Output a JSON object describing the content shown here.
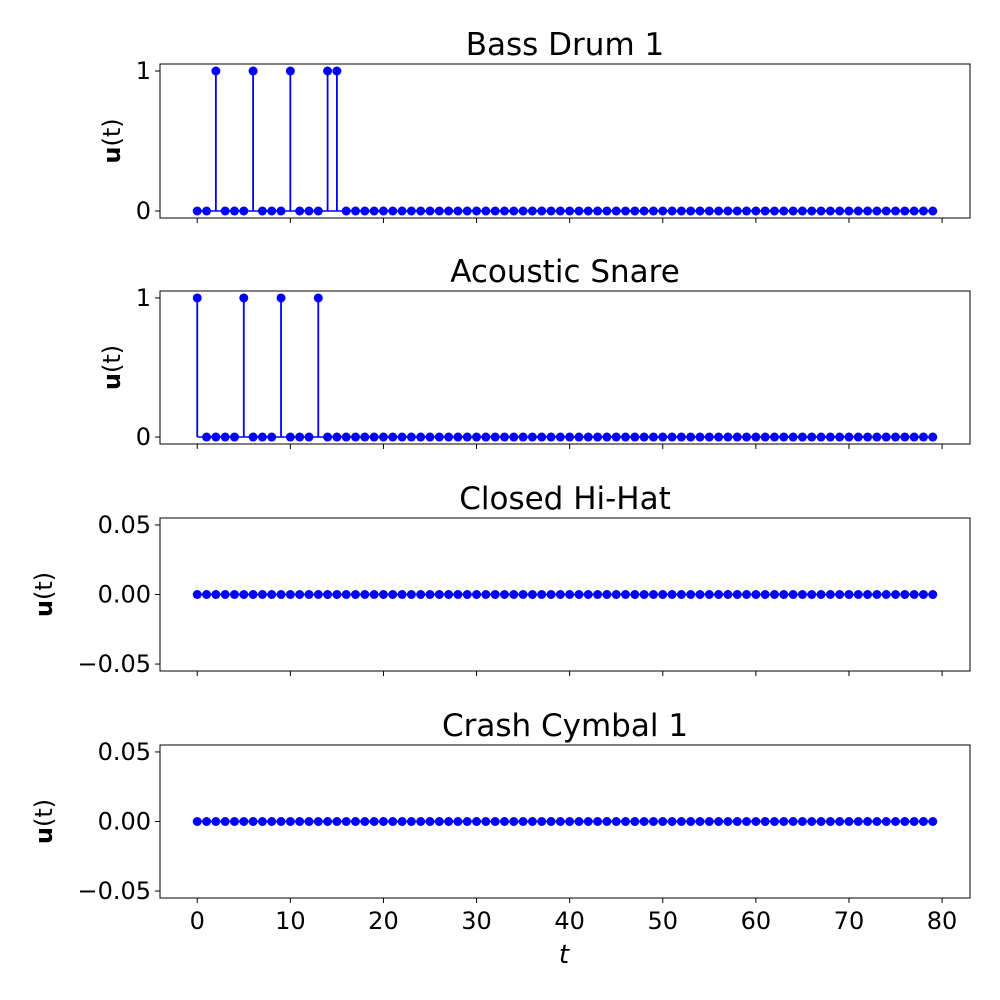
{
  "chart_data": [
    {
      "type": "stem",
      "title": "Bass Drum 1",
      "ylabel_bold": "u",
      "ylabel_rest": "(t)",
      "xlim": [
        -4,
        83
      ],
      "ylim": [
        -0.05,
        1.05
      ],
      "yticks": [
        0,
        1
      ],
      "ytick_labels": [
        "0",
        "1"
      ],
      "x_start": 0,
      "values": [
        0,
        0,
        1,
        0,
        0,
        0,
        1,
        0,
        0,
        0,
        1,
        0,
        0,
        0,
        1,
        1,
        0,
        0,
        0,
        0,
        0,
        0,
        0,
        0,
        0,
        0,
        0,
        0,
        0,
        0,
        0,
        0,
        0,
        0,
        0,
        0,
        0,
        0,
        0,
        0,
        0,
        0,
        0,
        0,
        0,
        0,
        0,
        0,
        0,
        0,
        0,
        0,
        0,
        0,
        0,
        0,
        0,
        0,
        0,
        0,
        0,
        0,
        0,
        0,
        0,
        0,
        0,
        0,
        0,
        0,
        0,
        0,
        0,
        0,
        0,
        0,
        0,
        0,
        0,
        0
      ],
      "color": "#0000ff"
    },
    {
      "type": "stem",
      "title": "Acoustic Snare",
      "ylabel_bold": "u",
      "ylabel_rest": "(t)",
      "xlim": [
        -4,
        83
      ],
      "ylim": [
        -0.05,
        1.05
      ],
      "yticks": [
        0,
        1
      ],
      "ytick_labels": [
        "0",
        "1"
      ],
      "x_start": 0,
      "values": [
        1,
        0,
        0,
        0,
        0,
        1,
        0,
        0,
        0,
        1,
        0,
        0,
        0,
        1,
        0,
        0,
        0,
        0,
        0,
        0,
        0,
        0,
        0,
        0,
        0,
        0,
        0,
        0,
        0,
        0,
        0,
        0,
        0,
        0,
        0,
        0,
        0,
        0,
        0,
        0,
        0,
        0,
        0,
        0,
        0,
        0,
        0,
        0,
        0,
        0,
        0,
        0,
        0,
        0,
        0,
        0,
        0,
        0,
        0,
        0,
        0,
        0,
        0,
        0,
        0,
        0,
        0,
        0,
        0,
        0,
        0,
        0,
        0,
        0,
        0,
        0,
        0,
        0,
        0,
        0
      ],
      "color": "#0000ff"
    },
    {
      "type": "stem",
      "title": "Closed Hi-Hat",
      "ylabel_bold": "u",
      "ylabel_rest": "(t)",
      "xlim": [
        -4,
        83
      ],
      "ylim": [
        -0.055,
        0.055
      ],
      "yticks": [
        -0.05,
        0.0,
        0.05
      ],
      "ytick_labels": [
        "−0.05",
        "0.00",
        "0.05"
      ],
      "x_start": 0,
      "values": [
        0,
        0,
        0,
        0,
        0,
        0,
        0,
        0,
        0,
        0,
        0,
        0,
        0,
        0,
        0,
        0,
        0,
        0,
        0,
        0,
        0,
        0,
        0,
        0,
        0,
        0,
        0,
        0,
        0,
        0,
        0,
        0,
        0,
        0,
        0,
        0,
        0,
        0,
        0,
        0,
        0,
        0,
        0,
        0,
        0,
        0,
        0,
        0,
        0,
        0,
        0,
        0,
        0,
        0,
        0,
        0,
        0,
        0,
        0,
        0,
        0,
        0,
        0,
        0,
        0,
        0,
        0,
        0,
        0,
        0,
        0,
        0,
        0,
        0,
        0,
        0,
        0,
        0,
        0,
        0
      ],
      "color": "#0000ff"
    },
    {
      "type": "stem",
      "title": "Crash Cymbal 1",
      "ylabel_bold": "u",
      "ylabel_rest": "(t)",
      "xlim": [
        -4,
        83
      ],
      "ylim": [
        -0.055,
        0.055
      ],
      "yticks": [
        -0.05,
        0.0,
        0.05
      ],
      "ytick_labels": [
        "−0.05",
        "0.00",
        "0.05"
      ],
      "x_start": 0,
      "values": [
        0,
        0,
        0,
        0,
        0,
        0,
        0,
        0,
        0,
        0,
        0,
        0,
        0,
        0,
        0,
        0,
        0,
        0,
        0,
        0,
        0,
        0,
        0,
        0,
        0,
        0,
        0,
        0,
        0,
        0,
        0,
        0,
        0,
        0,
        0,
        0,
        0,
        0,
        0,
        0,
        0,
        0,
        0,
        0,
        0,
        0,
        0,
        0,
        0,
        0,
        0,
        0,
        0,
        0,
        0,
        0,
        0,
        0,
        0,
        0,
        0,
        0,
        0,
        0,
        0,
        0,
        0,
        0,
        0,
        0,
        0,
        0,
        0,
        0,
        0,
        0,
        0,
        0,
        0,
        0
      ],
      "color": "#0000ff"
    }
  ],
  "shared_x": {
    "xticks": [
      0,
      10,
      20,
      30,
      40,
      50,
      60,
      70,
      80
    ],
    "xtick_labels": [
      "0",
      "10",
      "20",
      "30",
      "40",
      "50",
      "60",
      "70",
      "80"
    ],
    "xlabel": "t"
  }
}
